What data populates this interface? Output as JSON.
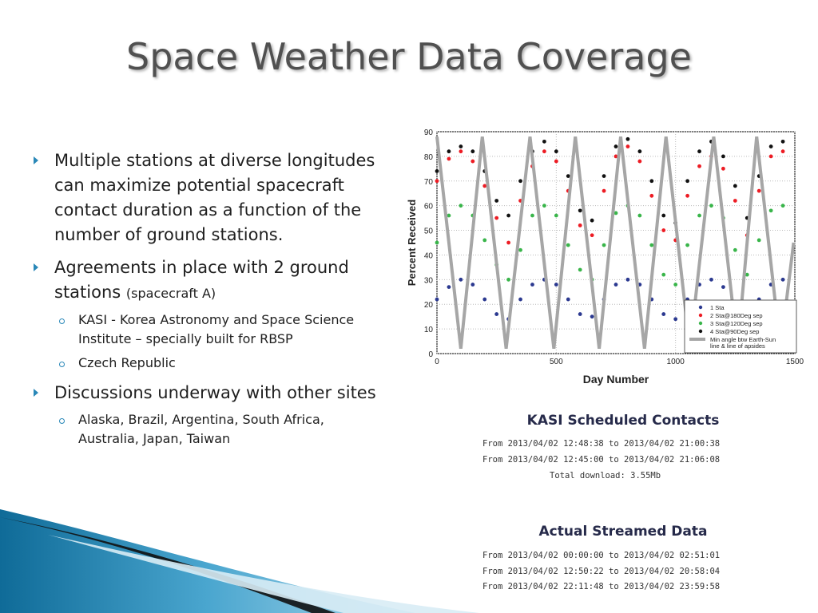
{
  "slide": {
    "title": "Space Weather Data Coverage",
    "bullets": [
      {
        "text": "Multiple stations at diverse longitudes can maximize potential spacecraft contact duration as a function of the number of ground stations."
      },
      {
        "text": "Agreements in place with 2 ground stations",
        "note": "(spacecraft A)",
        "sub": [
          "KASI - Korea Astronomy and Space Science Institute – specially built for RBSP",
          "Czech Republic"
        ]
      },
      {
        "text": "Discussions underway with other sites",
        "sub": [
          "Alaska, Brazil, Argentina, South Africa, Australia, Japan, Taiwan"
        ]
      }
    ],
    "kasi": {
      "title": "KASI Scheduled Contacts",
      "lines": [
        "From 2013/04/02 12:48:38 to 2013/04/02 21:00:38",
        "From 2013/04/02 12:45:00 to 2013/04/02 21:06:08"
      ],
      "total": "Total download: 3.55Mb"
    },
    "streamed": {
      "title": "Actual Streamed Data",
      "lines": [
        "From 2013/04/02 00:00:00 to 2013/04/02 02:51:01",
        "From 2013/04/02 12:50:22 to 2013/04/02 20:58:04",
        "From 2013/04/02 22:11:48 to 2013/04/02 23:59:58"
      ]
    },
    "colors": {
      "accent": "#2a88b8",
      "sta1": "#2b3990",
      "sta2": "#ed1c24",
      "sta3": "#39b54a",
      "sta4": "#111111",
      "angle": "#a6a6a6"
    }
  },
  "chart_data": {
    "type": "scatter",
    "xlabel": "Day Number",
    "ylabel": "Percent Received",
    "xlim": [
      0,
      1500
    ],
    "ylim": [
      0,
      90
    ],
    "xticks": [
      0,
      500,
      1000,
      1500
    ],
    "yticks": [
      0,
      10,
      20,
      30,
      40,
      50,
      60,
      70,
      80,
      90
    ],
    "grid": true,
    "legend_position": "bottom-right",
    "series": [
      {
        "name": "1 Sta",
        "color": "#2b3990",
        "x": [
          0,
          50,
          100,
          150,
          200,
          250,
          300,
          350,
          400,
          450,
          500,
          550,
          600,
          650,
          700,
          750,
          800,
          850,
          900,
          950,
          1000,
          1050,
          1100,
          1150,
          1200,
          1250,
          1300,
          1350,
          1400,
          1450
        ],
        "y": [
          22,
          27,
          30,
          28,
          22,
          16,
          14,
          22,
          28,
          30,
          28,
          22,
          16,
          15,
          22,
          28,
          30,
          28,
          22,
          16,
          14,
          22,
          28,
          30,
          27,
          21,
          15,
          22,
          28,
          30
        ]
      },
      {
        "name": "2 Sta@180Deg sep",
        "color": "#ed1c24",
        "x": [
          0,
          50,
          100,
          150,
          200,
          250,
          300,
          350,
          400,
          450,
          500,
          550,
          600,
          650,
          700,
          750,
          800,
          850,
          900,
          950,
          1000,
          1050,
          1100,
          1150,
          1200,
          1250,
          1300,
          1350,
          1400,
          1450
        ],
        "y": [
          70,
          79,
          82,
          78,
          68,
          55,
          45,
          62,
          76,
          82,
          78,
          66,
          52,
          48,
          66,
          80,
          84,
          78,
          64,
          50,
          46,
          64,
          76,
          80,
          75,
          62,
          48,
          66,
          80,
          82
        ]
      },
      {
        "name": "3 Sta@120Deg sep",
        "color": "#39b54a",
        "x": [
          0,
          50,
          100,
          150,
          200,
          250,
          300,
          350,
          400,
          450,
          500,
          550,
          600,
          650,
          700,
          750,
          800,
          850,
          900,
          950,
          1000,
          1050,
          1100,
          1150,
          1200,
          1250,
          1300,
          1350,
          1400,
          1450
        ],
        "y": [
          45,
          56,
          60,
          56,
          46,
          36,
          30,
          42,
          56,
          60,
          56,
          44,
          34,
          30,
          44,
          57,
          60,
          56,
          44,
          32,
          28,
          44,
          56,
          60,
          55,
          42,
          32,
          46,
          58,
          60
        ]
      },
      {
        "name": "4 Sta@90Deg sep",
        "color": "#111111",
        "x": [
          0,
          50,
          100,
          150,
          200,
          250,
          300,
          350,
          400,
          450,
          500,
          550,
          600,
          650,
          700,
          750,
          800,
          850,
          900,
          950,
          1000,
          1050,
          1100,
          1150,
          1200,
          1250,
          1300,
          1350,
          1400,
          1450
        ],
        "y": [
          74,
          82,
          84,
          82,
          74,
          62,
          56,
          70,
          82,
          86,
          82,
          72,
          58,
          54,
          72,
          84,
          87,
          82,
          70,
          56,
          53,
          70,
          82,
          86,
          80,
          68,
          55,
          72,
          84,
          86
        ]
      },
      {
        "name": "Min angle btw Earth-Sun line & line of apsides",
        "color": "#a6a6a6",
        "x": [
          0,
          100,
          190,
          290,
          390,
          490,
          580,
          680,
          770,
          870,
          960,
          1060,
          1160,
          1260,
          1340,
          1440,
          1495
        ],
        "y": [
          88,
          2,
          88,
          2,
          88,
          2,
          88,
          2,
          88,
          2,
          88,
          2,
          88,
          2,
          88,
          2,
          45
        ]
      }
    ]
  }
}
